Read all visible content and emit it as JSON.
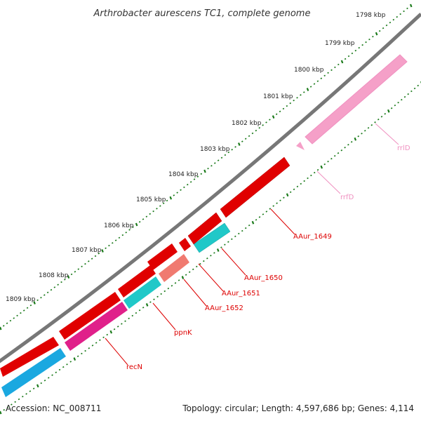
{
  "title": "Arthrobacter aurescens TC1, complete genome",
  "footer": {
    "accession": "Accession: NC_008711",
    "summary": "Topology: circular; Length: 4,597,686 bp; Genes: 4,114"
  },
  "ticks": [
    "1798 kbp",
    "1799 kbp",
    "1800 kbp",
    "1801 kbp",
    "1802 kbp",
    "1803 kbp",
    "1804 kbp",
    "1805 kbp",
    "1806 kbp",
    "1807 kbp",
    "1808 kbp",
    "1809 kbp"
  ],
  "genes": [
    {
      "label": "rrlD",
      "color": "#f47fb2"
    },
    {
      "label": "rrfD",
      "color": "#f47fb2"
    },
    {
      "label": "AAur_1649",
      "color": "#dd0000"
    },
    {
      "label": "AAur_1650",
      "color": "#dd0000"
    },
    {
      "label": "AAur_1651",
      "color": "#dd0000"
    },
    {
      "label": "AAur_1652",
      "color": "#dd0000"
    },
    {
      "label": "ppnK",
      "color": "#dd0000"
    },
    {
      "label": "recN",
      "color": "#dd0000"
    }
  ],
  "colors": {
    "backbone": "#888888",
    "tick": "#1a7a1a",
    "cds_red": "#e00000",
    "cds_cyan": "#20c8c8",
    "cds_salmon": "#f07a70",
    "cds_magenta": "#e0208a",
    "cds_blue": "#1aa8e0",
    "rrna_pink": "#f5a0c8"
  }
}
